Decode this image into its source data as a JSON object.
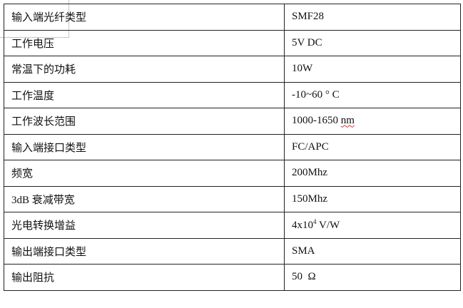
{
  "rows": [
    {
      "label": "输入端光纤类型",
      "value": "SMF28"
    },
    {
      "label": "工作电压",
      "value": "5V DC"
    },
    {
      "label": "常温下的功耗",
      "value": "10W"
    },
    {
      "label": "工作温度",
      "value": "-10~60 ° C"
    },
    {
      "label": "工作波长范围",
      "value": "1000-1650",
      "unit": "nm"
    },
    {
      "label": "输入端接口类型",
      "value": "FC/APC"
    },
    {
      "label": "频宽",
      "value": "200Mhz"
    },
    {
      "label": "3dB 衰减带宽",
      "value": "150Mhz"
    },
    {
      "label": "光电转换增益",
      "value": "4x10",
      "exponent": "4",
      "unit": "V/W"
    },
    {
      "label": "输出端接口类型",
      "value": "SMA"
    },
    {
      "label": "输出阻抗",
      "value": "50  Ω"
    }
  ]
}
